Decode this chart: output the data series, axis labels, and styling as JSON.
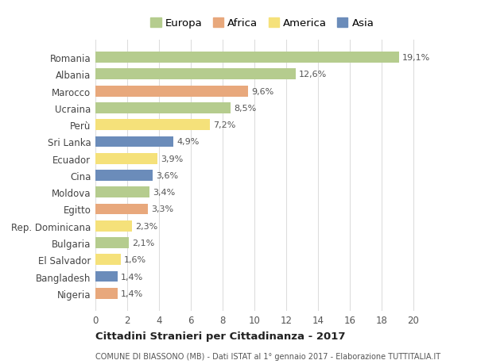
{
  "countries": [
    "Romania",
    "Albania",
    "Marocco",
    "Ucraina",
    "Perù",
    "Sri Lanka",
    "Ecuador",
    "Cina",
    "Moldova",
    "Egitto",
    "Rep. Dominicana",
    "Bulgaria",
    "El Salvador",
    "Bangladesh",
    "Nigeria"
  ],
  "values": [
    19.1,
    12.6,
    9.6,
    8.5,
    7.2,
    4.9,
    3.9,
    3.6,
    3.4,
    3.3,
    2.3,
    2.1,
    1.6,
    1.4,
    1.4
  ],
  "labels": [
    "19,1%",
    "12,6%",
    "9,6%",
    "8,5%",
    "7,2%",
    "4,9%",
    "3,9%",
    "3,6%",
    "3,4%",
    "3,3%",
    "2,3%",
    "2,1%",
    "1,6%",
    "1,4%",
    "1,4%"
  ],
  "continents": [
    "Europa",
    "Europa",
    "Africa",
    "Europa",
    "America",
    "Asia",
    "America",
    "Asia",
    "Europa",
    "Africa",
    "America",
    "Europa",
    "America",
    "Asia",
    "Africa"
  ],
  "colors": {
    "Europa": "#b5cc8e",
    "Africa": "#e8a87c",
    "America": "#f5e17a",
    "Asia": "#6b8cba"
  },
  "legend_order": [
    "Europa",
    "Africa",
    "America",
    "Asia"
  ],
  "title": "Cittadini Stranieri per Cittadinanza - 2017",
  "subtitle": "COMUNE DI BIASSONO (MB) - Dati ISTAT al 1° gennaio 2017 - Elaborazione TUTTITALIA.IT",
  "xlim": [
    0,
    21
  ],
  "xticks": [
    0,
    2,
    4,
    6,
    8,
    10,
    12,
    14,
    16,
    18,
    20
  ],
  "background_color": "#ffffff",
  "grid_color": "#dddddd",
  "bar_height": 0.65
}
